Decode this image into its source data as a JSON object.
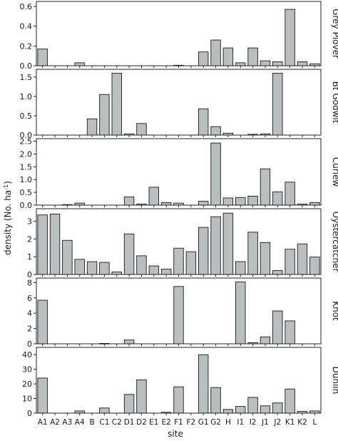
{
  "chart_data": {
    "type": "bar",
    "xlabel": "site",
    "ylabel": "density (No. ha",
    "ylabel_superscript": "-1",
    "ylabel_close": ")",
    "categories": [
      "A1",
      "A2",
      "A3",
      "A4",
      "B",
      "C1",
      "C2",
      "D1",
      "D2",
      "E1",
      "E2",
      "F1",
      "F2",
      "G1",
      "G2",
      "H",
      "I1",
      "I2",
      "J1",
      "J2",
      "K1",
      "K2",
      "L"
    ],
    "bar_color": "#b9bfbf",
    "panels": [
      {
        "name": "Grey Plover",
        "ylim": [
          0,
          0.65
        ],
        "yticks": [
          0.0,
          0.2,
          0.4,
          0.6
        ],
        "ytick_labels": [
          "0.0",
          "0.2",
          "0.4",
          "0.6"
        ],
        "values": [
          0.17,
          0,
          0,
          0.03,
          0,
          0,
          0,
          0,
          0,
          0,
          0,
          0.005,
          0,
          0.14,
          0.26,
          0.18,
          0.03,
          0.18,
          0.05,
          0.04,
          0.57,
          0.04,
          0.02
        ]
      },
      {
        "name": "Bt Godwit",
        "ylim": [
          0,
          1.7
        ],
        "yticks": [
          0.0,
          0.5,
          1.0,
          1.5
        ],
        "ytick_labels": [
          "0.0",
          "0.5",
          "1.0",
          "1.5"
        ],
        "values": [
          0,
          0,
          0,
          0,
          0.42,
          1.05,
          1.6,
          0.03,
          0.3,
          0,
          0,
          0,
          0,
          0.68,
          0.22,
          0.05,
          0,
          0.02,
          0.03,
          1.6,
          0,
          0,
          0
        ]
      },
      {
        "name": "Curlew",
        "ylim": [
          0,
          2.6
        ],
        "yticks": [
          0.0,
          0.5,
          1.0,
          1.5,
          2.0,
          2.5
        ],
        "ytick_labels": [
          "0.0",
          "0.5",
          "1.0",
          "1.5",
          "2.0",
          "2.5"
        ],
        "values": [
          0,
          0,
          0.02,
          0.08,
          0,
          0,
          0,
          0.32,
          0.04,
          0.7,
          0.1,
          0.08,
          0,
          0.15,
          2.43,
          0.28,
          0.3,
          0.35,
          1.42,
          0.52,
          0.9,
          0.04,
          0.1
        ]
      },
      {
        "name": "Oystercatcher",
        "ylim": [
          0,
          3.7
        ],
        "yticks": [
          0,
          1,
          2,
          3
        ],
        "ytick_labels": [
          "0",
          "1",
          "2",
          "3"
        ],
        "values": [
          3.35,
          3.4,
          1.92,
          0.85,
          0.72,
          0.68,
          0.14,
          2.28,
          1.05,
          0.48,
          0.3,
          1.48,
          1.28,
          2.65,
          3.25,
          3.45,
          0.72,
          2.38,
          1.8,
          0.22,
          1.42,
          1.72,
          0.98
        ]
      },
      {
        "name": "Knot",
        "ylim": [
          0,
          8.6
        ],
        "yticks": [
          0,
          2,
          4,
          6,
          8
        ],
        "ytick_labels": [
          "0",
          "2",
          "4",
          "6",
          "8"
        ],
        "values": [
          5.7,
          0,
          0,
          0,
          0,
          0.05,
          0,
          0.5,
          0,
          0,
          0,
          7.5,
          0,
          0,
          0,
          0,
          8.1,
          0.15,
          0.9,
          4.3,
          3.0,
          0,
          0
        ]
      },
      {
        "name": "Dunlin",
        "ylim": [
          0,
          45
        ],
        "yticks": [
          0,
          10,
          20,
          30,
          40
        ],
        "ytick_labels": [
          "0",
          "10",
          "20",
          "30",
          "40"
        ],
        "values": [
          24,
          0,
          0,
          1.5,
          0,
          3.5,
          0,
          12.8,
          22.8,
          0,
          0.6,
          18,
          0,
          40,
          17.5,
          2.5,
          4.6,
          10.8,
          5,
          7,
          16.5,
          1.2,
          1.5
        ]
      }
    ]
  }
}
